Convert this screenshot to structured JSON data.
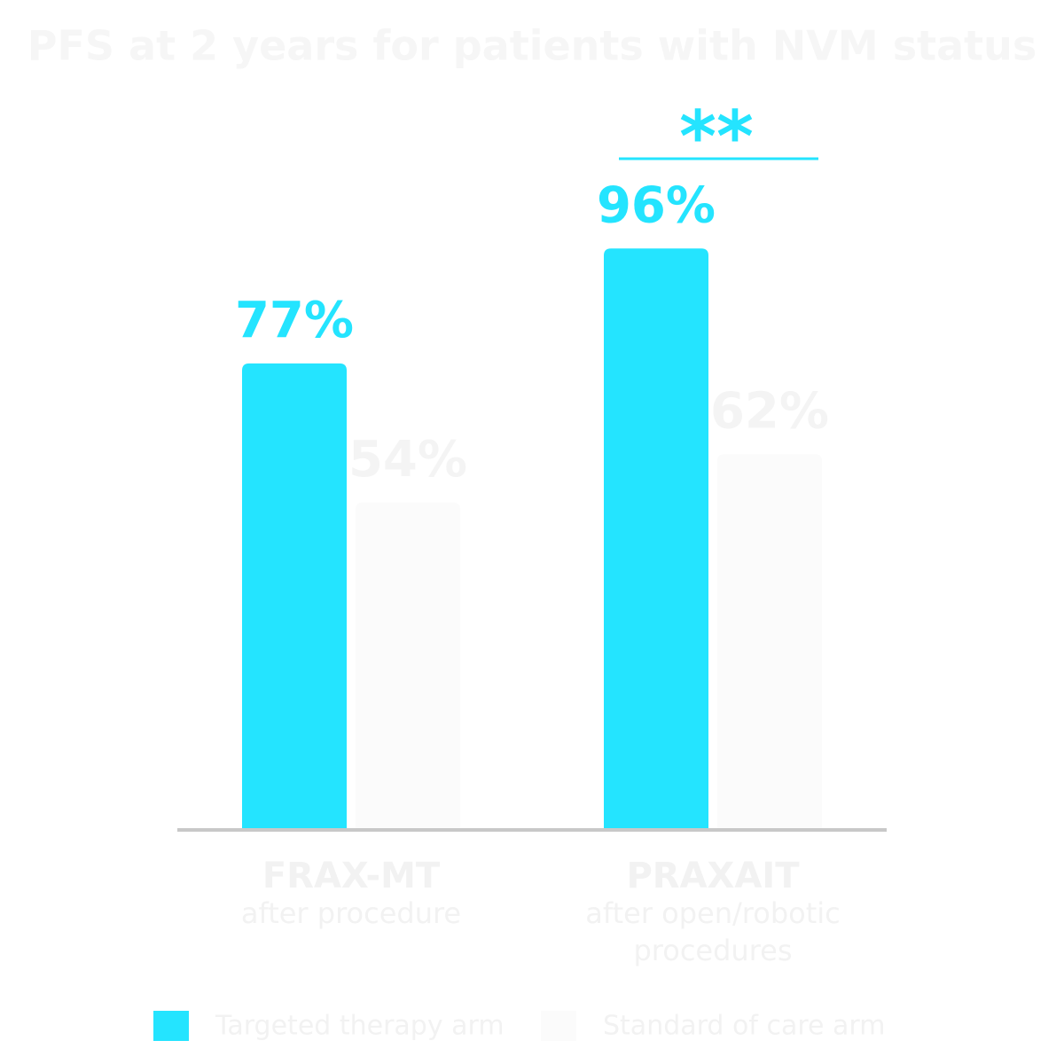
{
  "chart_data": {
    "type": "bar",
    "title": "PFS at 2 years for patients with NVM status",
    "categories": [
      [
        "FRAX-MT",
        "after procedure"
      ],
      [
        "PRAXAIT",
        "after open/robotic",
        "procedures"
      ]
    ],
    "series": [
      {
        "name": "Targeted therapy arm",
        "color": "#24e4ff",
        "values": [
          77,
          96
        ],
        "value_labels": [
          "77%",
          "96%"
        ]
      },
      {
        "name": "Standard of care arm",
        "color": "#fbfbfb",
        "values": [
          54,
          62
        ],
        "value_labels": [
          "54%",
          "62%"
        ]
      }
    ],
    "annotations": [
      {
        "text": "**",
        "category": 1
      }
    ],
    "axis_color": "#c8c8c8"
  }
}
